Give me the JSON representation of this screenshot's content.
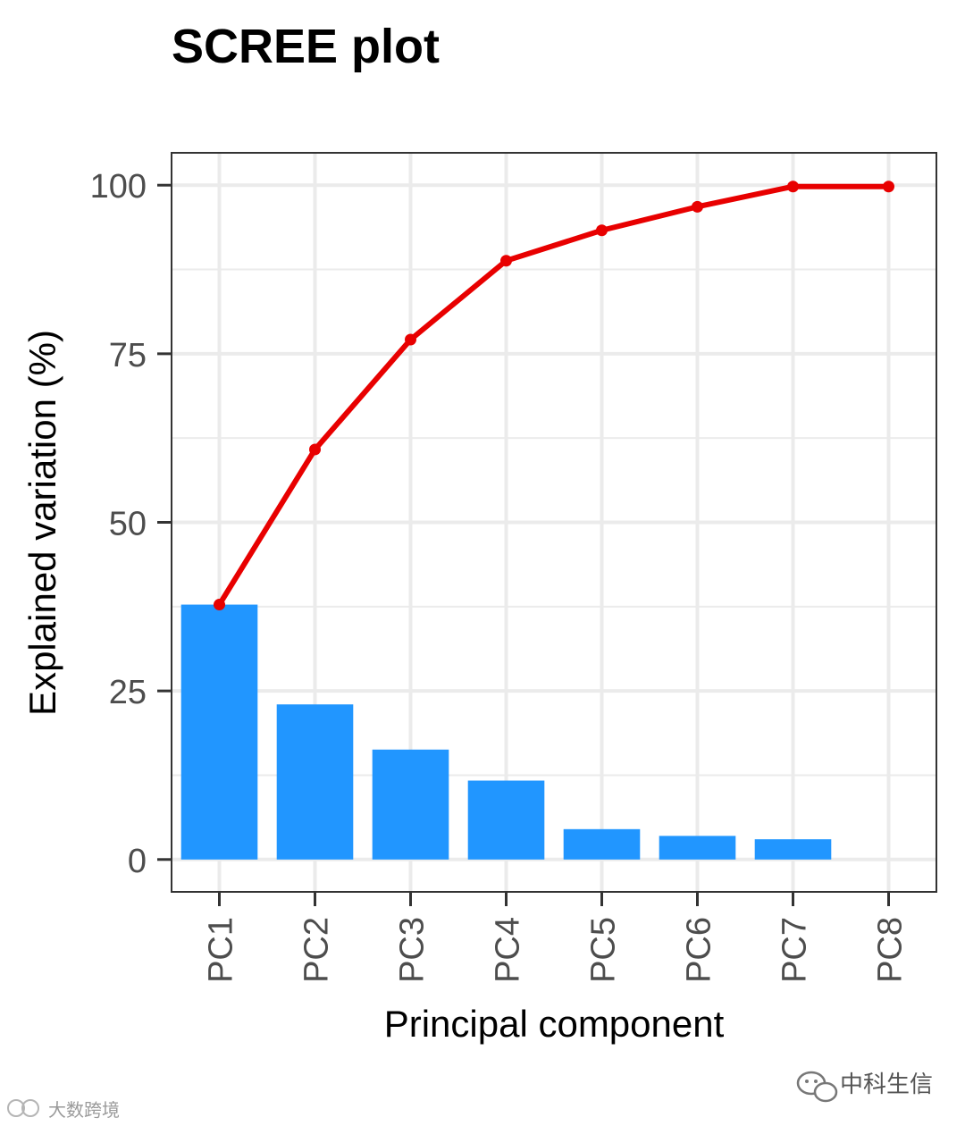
{
  "chart_data": {
    "type": "bar",
    "title": "SCREE plot",
    "xlabel": "Principal component",
    "ylabel": "Explained variation (%)",
    "categories": [
      "PC1",
      "PC2",
      "PC3",
      "PC4",
      "PC5",
      "PC6",
      "PC7",
      "PC8"
    ],
    "series": [
      {
        "type": "bar",
        "values": [
          37.8,
          23.0,
          16.3,
          11.7,
          4.5,
          3.5,
          3.0,
          0.0
        ],
        "color": "#2196FF"
      },
      {
        "type": "line",
        "values": [
          37.8,
          60.8,
          77.1,
          88.8,
          93.3,
          96.8,
          99.8,
          99.8
        ],
        "color": "#E80000"
      }
    ],
    "yticks": [
      0,
      25,
      50,
      75,
      100
    ],
    "ylim": [
      -4.8,
      104.8
    ],
    "grid": true,
    "legend": "none"
  },
  "watermarks": {
    "right_text": "中科生信",
    "left_text": "大数跨境"
  },
  "colors": {
    "grid": "#EBEBEB",
    "panel_border": "#333333",
    "tick_text": "#4D4D4D"
  }
}
